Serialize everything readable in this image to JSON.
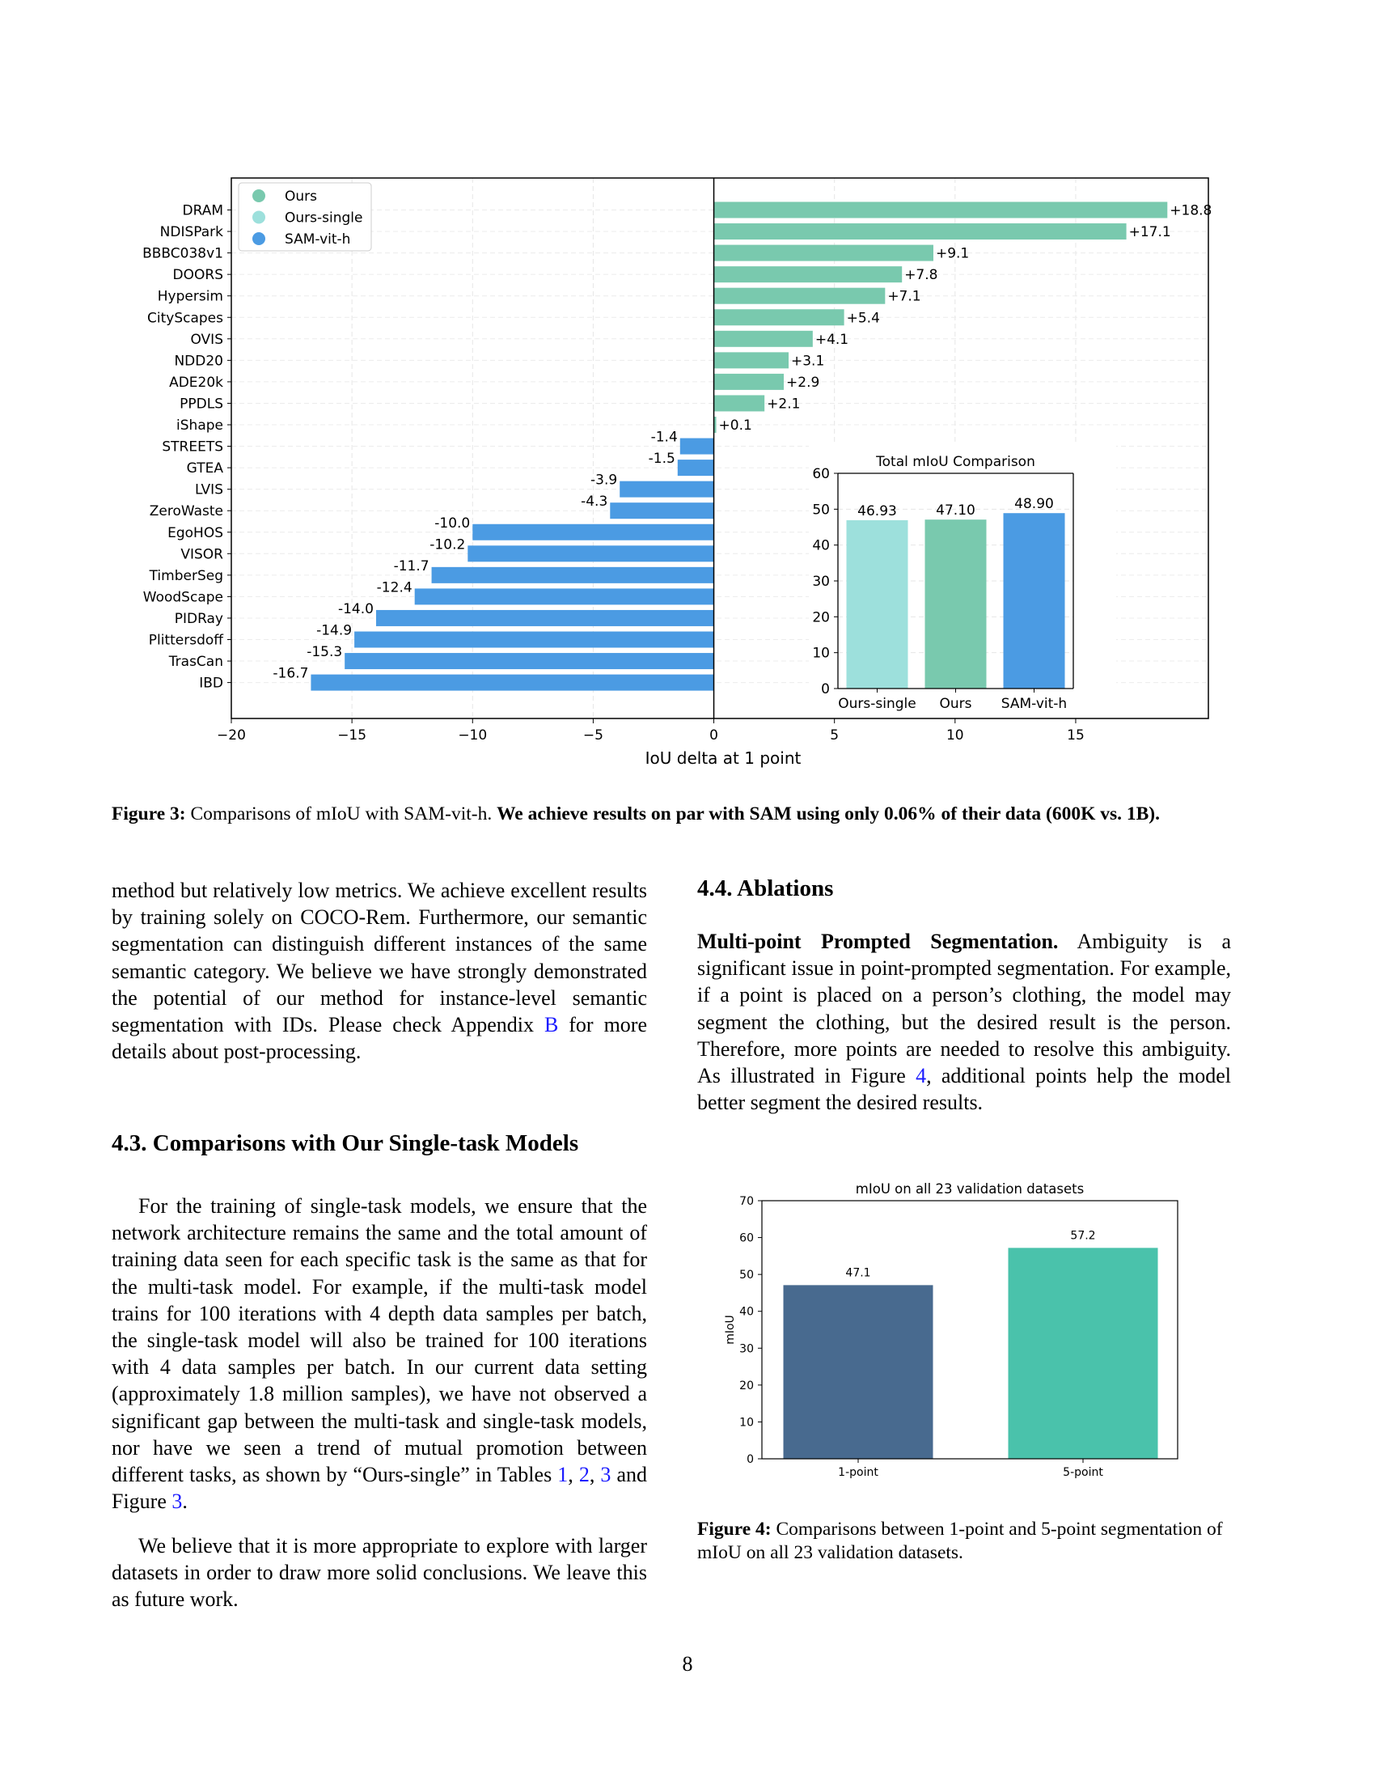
{
  "figure3": {
    "legend": [
      {
        "label": "Ours",
        "color": "#79c9ae"
      },
      {
        "label": "Ours-single",
        "color": "#9de0dc"
      },
      {
        "label": "SAM-vit-h",
        "color": "#4b9be3"
      }
    ],
    "caption_label": "Figure 3:",
    "caption_text": "Comparisons of mIoU with SAM-vit-h.",
    "caption_bold": "We achieve results on par with SAM using only 0.06% of their data (600K vs. 1B)."
  },
  "chart_data": [
    {
      "type": "bar",
      "orientation": "horizontal",
      "categories": [
        "DRAM",
        "NDISPark",
        "BBBC038v1",
        "DOORS",
        "Hypersim",
        "CityScapes",
        "OVIS",
        "NDD20",
        "ADE20k",
        "PPDLS",
        "iShape",
        "STREETS",
        "GTEA",
        "LVIS",
        "ZeroWaste",
        "EgoHOS",
        "VISOR",
        "TimberSeg",
        "WoodScape",
        "PIDRay",
        "Plittersdoff",
        "TrasCan",
        "IBD"
      ],
      "values": [
        18.8,
        17.1,
        9.1,
        7.8,
        7.1,
        5.4,
        4.1,
        3.1,
        2.9,
        2.1,
        0.1,
        -1.4,
        -1.5,
        -3.9,
        -4.3,
        -10.0,
        -10.2,
        -11.7,
        -12.4,
        -14.0,
        -14.9,
        -15.3,
        -16.7
      ],
      "labels": [
        "+18.8",
        "+17.1",
        "+9.1",
        "+7.8",
        "+7.1",
        "+5.4",
        "+4.1",
        "+3.1",
        "+2.9",
        "+2.1",
        "+0.1",
        "-1.4",
        "-1.5",
        "-3.9",
        "-4.3",
        "-10.0",
        "-10.2",
        "-11.7",
        "-12.4",
        "-14.0",
        "-14.9",
        "-15.3",
        "-16.7"
      ],
      "positive_color": "#79c9ae",
      "negative_color": "#4b9be3",
      "xlabel": "IoU delta at 1 point",
      "xlim": [
        -20,
        20.5
      ],
      "xticks": [
        -20,
        -15,
        -10,
        -5,
        0,
        5,
        10,
        15
      ],
      "xtick_labels": [
        "−20",
        "−15",
        "−10",
        "−5",
        "0",
        "5",
        "10",
        "15"
      ],
      "grid": true,
      "legend_position": "top-left"
    },
    {
      "type": "bar",
      "title": "Total mIoU Comparison",
      "categories": [
        "Ours-single",
        "Ours",
        "SAM-vit-h"
      ],
      "values": [
        46.93,
        47.1,
        48.9
      ],
      "labels": [
        "46.93",
        "47.10",
        "48.90"
      ],
      "colors": [
        "#9de0dc",
        "#79c9ae",
        "#4b9be3"
      ],
      "ylim": [
        0,
        60
      ],
      "yticks": [
        0,
        10,
        20,
        30,
        40,
        50,
        60
      ],
      "position": "inset bottom-right"
    },
    {
      "type": "bar",
      "title": "mIoU on all 23 validation datasets",
      "categories": [
        "1-point",
        "5-point"
      ],
      "values": [
        47.1,
        57.2
      ],
      "labels": [
        "47.1",
        "57.2"
      ],
      "colors": [
        "#486a8f",
        "#4ac2ab"
      ],
      "ylabel": "mIoU",
      "ylim": [
        0,
        70
      ],
      "yticks": [
        0,
        10,
        20,
        30,
        40,
        50,
        60,
        70
      ]
    }
  ],
  "left_column": {
    "para1": "method but relatively low metrics. We achieve excellent results by training solely on COCO-Rem. Furthermore, our semantic segmentation can distinguish different instances of the same semantic category. We believe we have strongly demonstrated the potential of our method for instance-level semantic segmentation with IDs. Please check Appendix ",
    "para1_link": "B",
    "para1_end": " for more details about post-processing.",
    "heading": "4.3. Comparisons with Our Single-task Models",
    "para2": "For the training of single-task models, we ensure that the network architecture remains the same and the total amount of training data seen for each specific task is the same as that for the multi-task model. For example, if the multi-task model trains for 100 iterations with 4 depth data samples per batch, the single-task model will also be trained for 100 iterations with 4 data samples per batch. In our current data setting (approximately 1.8 million samples), we have not observed a significant gap between the multi-task and single-task models, nor have we seen a trend of mutual promotion between different tasks, as shown by “Ours-single” in Tables ",
    "para2_link1": "1",
    "para2_sep1": ", ",
    "para2_link2": "2",
    "para2_sep2": ", ",
    "para2_link3": "3",
    "para2_mid": " and Figure ",
    "para2_link4": "3",
    "para2_end": ".",
    "para3": "We believe that it is more appropriate to explore with larger datasets in order to draw more solid conclusions. We leave this as future work."
  },
  "right_column": {
    "heading": "4.4. Ablations",
    "para_title": "Multi-point Prompted Segmentation.",
    "para": " Ambiguity is a significant issue in point-prompted segmentation. For example, if a point is placed on a person’s clothing, the model may segment the clothing, but the desired result is the person. Therefore, more points are needed to resolve this ambiguity. As illustrated in Figure ",
    "para_link": "4",
    "para_end": ", additional points help the model better segment the desired results."
  },
  "figure4": {
    "caption_label": "Figure 4:",
    "caption_text": " Comparisons between 1-point and 5-point segmentation of mIoU on all 23 validation datasets."
  },
  "page_number": "8"
}
